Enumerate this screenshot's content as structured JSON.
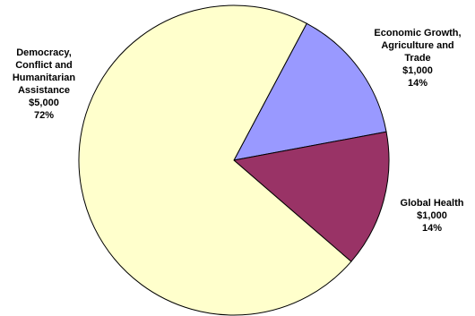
{
  "chart_data": {
    "type": "pie",
    "title": "",
    "slices": [
      {
        "name_lines": [
          "Economic Growth,",
          "Agriculture and",
          "Trade"
        ],
        "value_label": "$1,000",
        "value": 1000,
        "percent_label": "14%",
        "percent": 14,
        "color": "#9999ff"
      },
      {
        "name_lines": [
          "Global Health"
        ],
        "value_label": "$1,000",
        "value": 1000,
        "percent_label": "14%",
        "percent": 14,
        "color": "#993366"
      },
      {
        "name_lines": [
          "Democracy,",
          "Conflict and",
          "Humanitarian",
          "Assistance"
        ],
        "value_label": "$5,000",
        "value": 5000,
        "percent_label": "72%",
        "percent": 72,
        "color": "#ffffcc"
      }
    ],
    "start_angle_deg": 28,
    "direction": "clockwise",
    "legend": "none",
    "border_color": "#000000"
  }
}
